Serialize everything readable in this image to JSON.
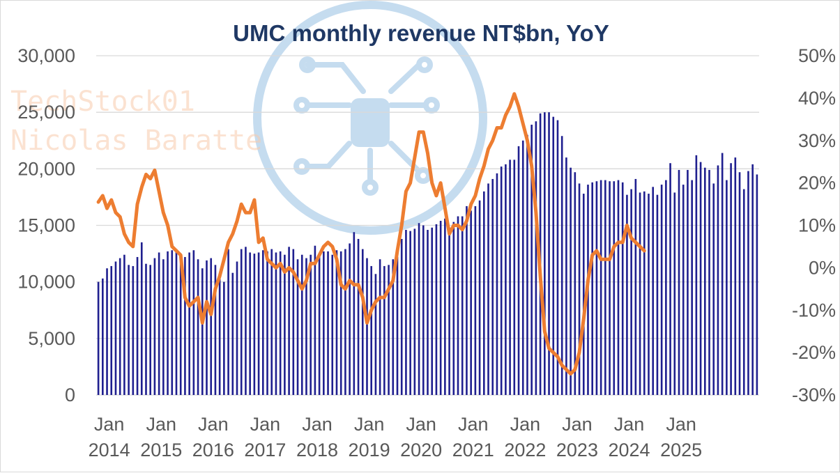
{
  "chart_data": {
    "type": "bar",
    "title": "UMC monthly revenue NT$bn, YoY",
    "watermark": [
      "TechStock01",
      "Nicolas  Baratte"
    ],
    "colors": {
      "bars": "#1f1f8f",
      "line": "#ed7d31",
      "title": "#1f3864",
      "grid": "#d9d9d9",
      "ticks": "#595959",
      "watermark_logo": "#c5dcef"
    },
    "grid": true,
    "y_left": {
      "min": 0,
      "max": 30000,
      "ticks": [
        "0",
        "5,000",
        "10,000",
        "15,000",
        "20,000",
        "25,000",
        "30,000"
      ]
    },
    "y_right": {
      "min": -30,
      "max": 50,
      "ticks": [
        "-30%",
        "-20%",
        "-10%",
        "0%",
        "10%",
        "20%",
        "30%",
        "40%",
        "50%"
      ]
    },
    "x_ticks": [
      {
        "month": "Jan",
        "year": "2014"
      },
      {
        "month": "Jan",
        "year": "2015"
      },
      {
        "month": "Jan",
        "year": "2016"
      },
      {
        "month": "Jan",
        "year": "2017"
      },
      {
        "month": "Jan",
        "year": "2018"
      },
      {
        "month": "Jan",
        "year": "2019"
      },
      {
        "month": "Jan",
        "year": "2020"
      },
      {
        "month": "Jan",
        "year": "2021"
      },
      {
        "month": "Jan",
        "year": "2022"
      },
      {
        "month": "Jan",
        "year": "2023"
      },
      {
        "month": "Jan",
        "year": "2024"
      },
      {
        "month": "Jan",
        "year": "2025"
      }
    ],
    "start_month": "2014-01",
    "series": [
      {
        "name": "",
        "type": "bar",
        "axis": "left",
        "values": [
          10000,
          10300,
          11200,
          11400,
          11800,
          12100,
          12400,
          11500,
          11400,
          12200,
          13500,
          11600,
          11500,
          12100,
          12600,
          12000,
          12700,
          12800,
          12900,
          12500,
          12200,
          12600,
          12800,
          12000,
          11200,
          11900,
          12100,
          11500,
          10500,
          10000,
          12900,
          10800,
          11800,
          12900,
          13100,
          12600,
          12500,
          12600,
          12800,
          12700,
          12900,
          12600,
          12700,
          12400,
          13100,
          12900,
          12000,
          12400,
          12100,
          12400,
          13200,
          12400,
          12700,
          12700,
          12400,
          12800,
          12700,
          12900,
          13400,
          14400,
          13800,
          12900,
          12100,
          11400,
          10700,
          12000,
          11400,
          11500,
          12000,
          12200,
          13800,
          14600,
          14500,
          14700,
          15200,
          15000,
          14600,
          14800,
          15100,
          15400,
          15600,
          14800,
          15300,
          15800,
          15800,
          16700,
          16300,
          16700,
          17200,
          18000,
          18700,
          19100,
          19600,
          20200,
          20400,
          20800,
          20800,
          22000,
          22500,
          23000,
          23900,
          24200,
          24900,
          25000,
          25000,
          24600,
          24300,
          22900,
          21000,
          20100,
          19700,
          18700,
          17800,
          18600,
          18800,
          18900,
          19000,
          19000,
          18900,
          18900,
          19000,
          18800,
          17700,
          18200,
          19100,
          17900,
          18000,
          17800,
          18400,
          17700,
          18600,
          19000,
          20500,
          17900,
          19900,
          18600,
          19900,
          19000,
          21200,
          20600,
          20100,
          19900,
          18700,
          20300,
          21400,
          19000,
          20500,
          21000,
          19700,
          18200,
          19800,
          20400,
          19500
        ]
      },
      {
        "name": "",
        "type": "line",
        "axis": "right",
        "values": [
          15.5,
          17,
          14,
          16,
          13,
          12,
          8,
          6,
          5,
          15,
          19,
          22,
          21,
          23,
          18,
          13,
          10,
          5,
          4,
          3,
          -7,
          -9,
          -8,
          -7,
          -13,
          -8,
          -11,
          -5,
          -2,
          2,
          6,
          8,
          11,
          15,
          13,
          13,
          16,
          6,
          7,
          2,
          1,
          0,
          1,
          -1,
          0,
          -1,
          -3,
          -5,
          -3,
          1,
          1,
          3,
          5,
          6,
          5,
          2,
          -4,
          -5,
          -3,
          -4,
          -4,
          -7,
          -13,
          -10,
          -8,
          -7,
          -7,
          -5,
          -3,
          4,
          10,
          18,
          20,
          26,
          32,
          32,
          27,
          20,
          17,
          20,
          14,
          8,
          10,
          10,
          9,
          11,
          15,
          17,
          21,
          24,
          28,
          30,
          33,
          33,
          36,
          38,
          41,
          38,
          34,
          30,
          24,
          13,
          -2,
          -15,
          -19,
          -20,
          -21,
          -23,
          -24,
          -25,
          -24,
          -20,
          -12,
          -3,
          3,
          4,
          2,
          2,
          2,
          5,
          6,
          6,
          10,
          7,
          6,
          5,
          4
        ]
      }
    ]
  }
}
